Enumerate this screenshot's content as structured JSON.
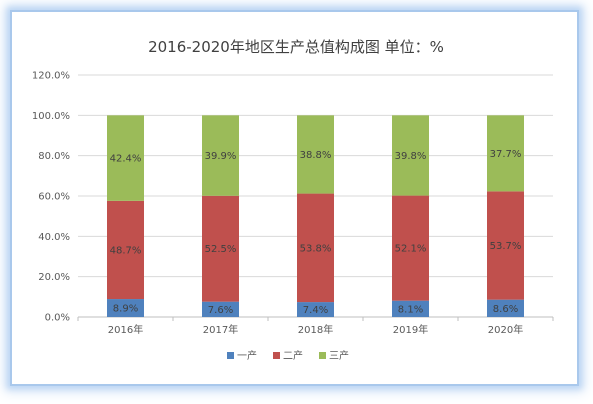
{
  "chart_data": {
    "type": "bar",
    "stacked": true,
    "title": "2016-2020年地区生产总值构成图 单位：%",
    "categories": [
      "2016年",
      "2017年",
      "2018年",
      "2019年",
      "2020年"
    ],
    "series": [
      {
        "name": "一产",
        "color": "#4f81bd",
        "values": [
          8.9,
          7.6,
          7.4,
          8.1,
          8.6
        ],
        "labels": [
          "8.9%",
          "7.6%",
          "7.4%",
          "8.1%",
          "8.6%"
        ]
      },
      {
        "name": "二产",
        "color": "#c0504d",
        "values": [
          48.7,
          52.5,
          53.8,
          52.1,
          53.7
        ],
        "labels": [
          "48.7%",
          "52.5%",
          "53.8%",
          "52.1%",
          "53.7%"
        ]
      },
      {
        "name": "三产",
        "color": "#9bbb59",
        "values": [
          42.4,
          39.9,
          38.8,
          39.8,
          37.7
        ],
        "labels": [
          "42.4%",
          "39.9%",
          "38.8%",
          "39.8%",
          "37.7%"
        ]
      }
    ],
    "y_ticks": [
      "0.0%",
      "20.0%",
      "40.0%",
      "60.0%",
      "80.0%",
      "100.0%",
      "120.0%"
    ],
    "ylim": [
      0,
      120
    ],
    "grid": true,
    "legend_position": "bottom"
  }
}
